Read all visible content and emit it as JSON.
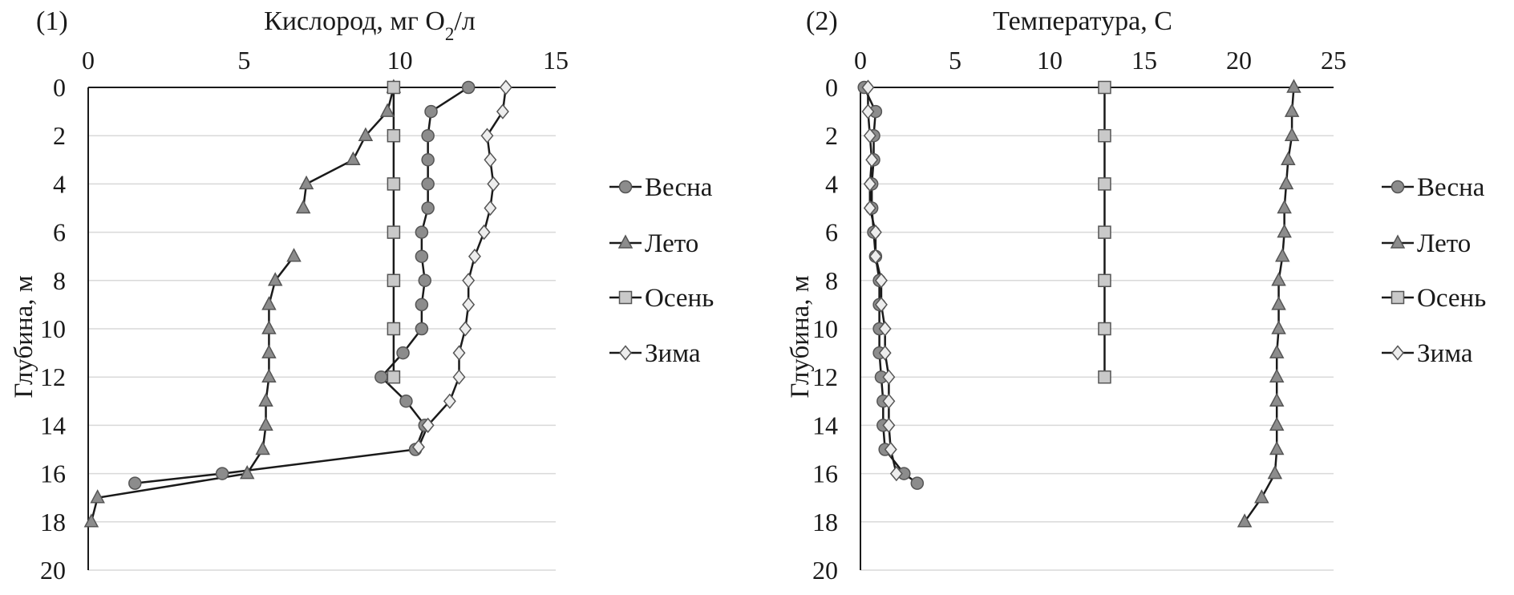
{
  "chart_data": [
    {
      "type": "line",
      "panel_label": "(1)",
      "title_main": "Кислород, мг O",
      "title_sub": "2",
      "title_tail": "/л",
      "ylabel": "Глубина, м",
      "xlim": [
        0,
        15
      ],
      "ylim": [
        0,
        20
      ],
      "x_ticks": [
        "0",
        "5",
        "10",
        "15"
      ],
      "y_ticks": [
        "0",
        "2",
        "4",
        "6",
        "8",
        "10",
        "12",
        "14",
        "16",
        "18",
        "20"
      ],
      "x_axis_position": "top",
      "y_inverted": true,
      "grid": "horizontal",
      "legend_position": "right",
      "series": [
        {
          "name": "Весна",
          "marker": "circle",
          "fill": "#8c8c8c",
          "points": [
            [
              12.2,
              0
            ],
            [
              11.0,
              1
            ],
            [
              10.9,
              2
            ],
            [
              10.9,
              3
            ],
            [
              10.9,
              4
            ],
            [
              10.9,
              5
            ],
            [
              10.7,
              6
            ],
            [
              10.7,
              7
            ],
            [
              10.8,
              8
            ],
            [
              10.7,
              9
            ],
            [
              10.7,
              10
            ],
            [
              10.1,
              11
            ],
            [
              9.4,
              12
            ],
            [
              10.2,
              13
            ],
            [
              10.8,
              14
            ],
            [
              10.5,
              15
            ],
            [
              4.3,
              16
            ],
            [
              1.5,
              16.4
            ]
          ]
        },
        {
          "name": "Лето",
          "marker": "triangle",
          "fill": "#8c8c8c",
          "points": [
            [
              9.8,
              0
            ],
            [
              9.6,
              1
            ],
            [
              8.9,
              2
            ],
            [
              8.5,
              3
            ],
            [
              7.0,
              4
            ],
            [
              6.9,
              5
            ],
            [
              null,
              6
            ],
            [
              6.6,
              7
            ],
            [
              6.0,
              8
            ],
            [
              5.8,
              9
            ],
            [
              5.8,
              10
            ],
            [
              5.8,
              11
            ],
            [
              5.8,
              12
            ],
            [
              5.7,
              13
            ],
            [
              5.7,
              14
            ],
            [
              5.6,
              15
            ],
            [
              5.1,
              16
            ],
            [
              0.3,
              17
            ],
            [
              0.1,
              18
            ]
          ]
        },
        {
          "name": "Осень",
          "marker": "square",
          "fill": "#c9c9c9",
          "points": [
            [
              9.8,
              0
            ],
            [
              9.8,
              2
            ],
            [
              9.8,
              4
            ],
            [
              9.8,
              6
            ],
            [
              9.8,
              8
            ],
            [
              9.8,
              10
            ],
            [
              9.8,
              12
            ]
          ]
        },
        {
          "name": "Зима",
          "marker": "diamond",
          "fill": "#ededed",
          "points": [
            [
              13.4,
              0
            ],
            [
              13.3,
              1
            ],
            [
              12.8,
              2
            ],
            [
              12.9,
              3
            ],
            [
              13.0,
              4
            ],
            [
              12.9,
              5
            ],
            [
              12.7,
              6
            ],
            [
              12.4,
              7
            ],
            [
              12.2,
              8
            ],
            [
              12.2,
              9
            ],
            [
              12.1,
              10
            ],
            [
              11.9,
              11
            ],
            [
              11.9,
              12
            ],
            [
              11.6,
              13
            ],
            [
              10.9,
              14
            ],
            [
              10.6,
              14.9
            ]
          ]
        }
      ]
    },
    {
      "type": "line",
      "panel_label": "(2)",
      "title_main": "Температура, С",
      "title_sub": "",
      "title_tail": "",
      "ylabel": "Глубина, м",
      "xlim": [
        0,
        25
      ],
      "ylim": [
        0,
        20
      ],
      "x_ticks": [
        "0",
        "5",
        "10",
        "15",
        "20",
        "25"
      ],
      "y_ticks": [
        "0",
        "2",
        "4",
        "6",
        "8",
        "10",
        "12",
        "14",
        "16",
        "18",
        "20"
      ],
      "x_axis_position": "top",
      "y_inverted": true,
      "grid": "horizontal",
      "legend_position": "right",
      "series": [
        {
          "name": "Весна",
          "marker": "circle",
          "fill": "#8c8c8c",
          "points": [
            [
              0.2,
              0
            ],
            [
              0.8,
              1
            ],
            [
              0.7,
              2
            ],
            [
              0.7,
              3
            ],
            [
              0.6,
              4
            ],
            [
              0.6,
              5
            ],
            [
              0.7,
              6
            ],
            [
              0.8,
              7
            ],
            [
              1.0,
              8
            ],
            [
              1.0,
              9
            ],
            [
              1.0,
              10
            ],
            [
              1.0,
              11
            ],
            [
              1.1,
              12
            ],
            [
              1.2,
              13
            ],
            [
              1.2,
              14
            ],
            [
              1.3,
              15
            ],
            [
              2.3,
              16
            ],
            [
              3.0,
              16.4
            ]
          ]
        },
        {
          "name": "Лето",
          "marker": "triangle",
          "fill": "#8c8c8c",
          "points": [
            [
              22.9,
              0
            ],
            [
              22.8,
              1
            ],
            [
              22.8,
              2
            ],
            [
              22.6,
              3
            ],
            [
              22.5,
              4
            ],
            [
              22.4,
              5
            ],
            [
              22.4,
              6
            ],
            [
              22.3,
              7
            ],
            [
              22.1,
              8
            ],
            [
              22.1,
              9
            ],
            [
              22.1,
              10
            ],
            [
              22.0,
              11
            ],
            [
              22.0,
              12
            ],
            [
              22.0,
              13
            ],
            [
              22.0,
              14
            ],
            [
              22.0,
              15
            ],
            [
              21.9,
              16
            ],
            [
              21.2,
              17
            ],
            [
              20.3,
              18
            ]
          ]
        },
        {
          "name": "Осень",
          "marker": "square",
          "fill": "#c9c9c9",
          "points": [
            [
              12.9,
              0
            ],
            [
              12.9,
              2
            ],
            [
              12.9,
              4
            ],
            [
              12.9,
              6
            ],
            [
              12.9,
              8
            ],
            [
              12.9,
              10
            ],
            [
              12.9,
              12
            ]
          ]
        },
        {
          "name": "Зима",
          "marker": "diamond",
          "fill": "#ededed",
          "points": [
            [
              0.4,
              0
            ],
            [
              0.4,
              1
            ],
            [
              0.5,
              2
            ],
            [
              0.6,
              3
            ],
            [
              0.5,
              4
            ],
            [
              0.5,
              5
            ],
            [
              0.8,
              6
            ],
            [
              0.8,
              7
            ],
            [
              1.1,
              8
            ],
            [
              1.1,
              9
            ],
            [
              1.3,
              10
            ],
            [
              1.3,
              11
            ],
            [
              1.5,
              12
            ],
            [
              1.5,
              13
            ],
            [
              1.5,
              14
            ],
            [
              1.6,
              15
            ],
            [
              1.9,
              16
            ]
          ]
        }
      ]
    }
  ],
  "colors": {
    "line": "#1a1a1a",
    "grid": "#d9d9d9",
    "axis": "#1a1a1a",
    "marker_edge": "#555555"
  }
}
